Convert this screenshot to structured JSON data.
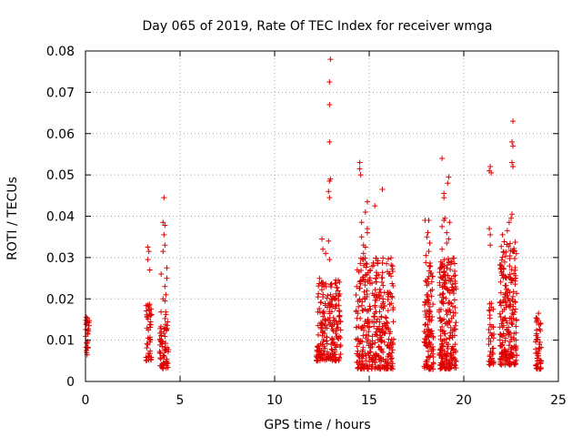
{
  "chart_data": {
    "type": "scatter",
    "title": "Day 065 of 2019, Rate Of TEC Index for receiver wmga",
    "xlabel": "GPS time / hours",
    "ylabel": "ROTI / TECUs",
    "xlim": [
      0,
      25
    ],
    "ylim": [
      0,
      0.08
    ],
    "x_ticks": [
      0,
      5,
      10,
      15,
      20,
      25
    ],
    "x_tick_labels": [
      "0",
      "5",
      "10",
      "15",
      "20",
      "25"
    ],
    "y_ticks": [
      0,
      0.01,
      0.02,
      0.03,
      0.04,
      0.05,
      0.06,
      0.07,
      0.08
    ],
    "y_tick_labels": [
      "0",
      "0.01",
      "0.02",
      "0.03",
      "0.04",
      "0.05",
      "0.06",
      "0.07",
      "0.08"
    ],
    "grid": true,
    "marker": "+",
    "marker_color": "#e00000",
    "clusters": [
      {
        "x_min": 0.0,
        "x_max": 0.2,
        "count": 25,
        "y_min": 0.006,
        "y_max": 0.016,
        "outliers": [
          [
            0.05,
            0.0155
          ],
          [
            0.1,
            0.0145
          ]
        ]
      },
      {
        "x_min": 3.2,
        "x_max": 3.5,
        "count": 45,
        "y_min": 0.005,
        "y_max": 0.019,
        "outliers": [
          [
            3.3,
            0.0325
          ],
          [
            3.35,
            0.0315
          ],
          [
            3.3,
            0.0295
          ],
          [
            3.4,
            0.027
          ]
        ]
      },
      {
        "x_min": 3.9,
        "x_max": 4.4,
        "count": 70,
        "y_min": 0.003,
        "y_max": 0.017,
        "outliers": [
          [
            4.15,
            0.0445
          ],
          [
            4.1,
            0.0385
          ],
          [
            4.2,
            0.0378
          ],
          [
            4.15,
            0.0355
          ],
          [
            4.2,
            0.033
          ],
          [
            4.1,
            0.0315
          ],
          [
            4.3,
            0.0275
          ],
          [
            4.0,
            0.026
          ],
          [
            4.3,
            0.025
          ],
          [
            4.2,
            0.023
          ],
          [
            4.25,
            0.021
          ],
          [
            4.1,
            0.02
          ],
          [
            4.2,
            0.0195
          ]
        ]
      },
      {
        "x_min": 12.2,
        "x_max": 13.5,
        "count": 210,
        "y_min": 0.005,
        "y_max": 0.025,
        "outliers": [
          [
            12.95,
            0.078
          ],
          [
            12.9,
            0.0725
          ],
          [
            12.9,
            0.067
          ],
          [
            12.9,
            0.058
          ],
          [
            12.95,
            0.049
          ],
          [
            12.9,
            0.0485
          ],
          [
            12.85,
            0.046
          ],
          [
            12.9,
            0.0445
          ],
          [
            12.5,
            0.0345
          ],
          [
            12.85,
            0.034
          ],
          [
            12.55,
            0.032
          ],
          [
            12.7,
            0.031
          ],
          [
            12.9,
            0.0295
          ]
        ]
      },
      {
        "x_min": 14.3,
        "x_max": 16.3,
        "count": 360,
        "y_min": 0.003,
        "y_max": 0.03,
        "outliers": [
          [
            14.5,
            0.053
          ],
          [
            14.5,
            0.0515
          ],
          [
            14.55,
            0.05
          ],
          [
            15.7,
            0.0465
          ],
          [
            14.9,
            0.0435
          ],
          [
            15.3,
            0.0425
          ],
          [
            14.8,
            0.041
          ],
          [
            14.6,
            0.0385
          ],
          [
            14.9,
            0.037
          ],
          [
            14.9,
            0.036
          ],
          [
            14.6,
            0.035
          ],
          [
            14.7,
            0.033
          ],
          [
            14.8,
            0.0325
          ],
          [
            14.7,
            0.031
          ]
        ]
      },
      {
        "x_min": 17.9,
        "x_max": 18.4,
        "count": 120,
        "y_min": 0.003,
        "y_max": 0.029,
        "outliers": [
          [
            17.95,
            0.039
          ],
          [
            18.15,
            0.039
          ],
          [
            18.1,
            0.036
          ],
          [
            18.05,
            0.035
          ],
          [
            18.2,
            0.0335
          ],
          [
            18.15,
            0.0315
          ],
          [
            18.0,
            0.0305
          ]
        ]
      },
      {
        "x_min": 18.7,
        "x_max": 19.6,
        "count": 230,
        "y_min": 0.003,
        "y_max": 0.03,
        "outliers": [
          [
            18.85,
            0.054
          ],
          [
            19.2,
            0.0495
          ],
          [
            19.15,
            0.048
          ],
          [
            18.95,
            0.0455
          ],
          [
            18.95,
            0.0445
          ],
          [
            19.0,
            0.0395
          ],
          [
            18.95,
            0.039
          ],
          [
            19.25,
            0.0385
          ],
          [
            18.85,
            0.0375
          ],
          [
            19.1,
            0.036
          ],
          [
            19.2,
            0.0345
          ],
          [
            19.1,
            0.0335
          ],
          [
            18.85,
            0.032
          ]
        ]
      },
      {
        "x_min": 21.3,
        "x_max": 21.6,
        "count": 40,
        "y_min": 0.004,
        "y_max": 0.019,
        "outliers": [
          [
            21.4,
            0.052
          ],
          [
            21.35,
            0.051
          ],
          [
            21.45,
            0.0505
          ],
          [
            21.35,
            0.037
          ],
          [
            21.4,
            0.0355
          ],
          [
            21.4,
            0.033
          ]
        ]
      },
      {
        "x_min": 21.9,
        "x_max": 22.8,
        "count": 230,
        "y_min": 0.004,
        "y_max": 0.034,
        "outliers": [
          [
            22.6,
            0.063
          ],
          [
            22.55,
            0.058
          ],
          [
            22.6,
            0.057
          ],
          [
            22.55,
            0.053
          ],
          [
            22.6,
            0.052
          ],
          [
            22.55,
            0.0405
          ],
          [
            22.5,
            0.0395
          ],
          [
            22.4,
            0.0385
          ],
          [
            22.3,
            0.0365
          ],
          [
            22.05,
            0.0355
          ]
        ]
      },
      {
        "x_min": 23.8,
        "x_max": 24.1,
        "count": 50,
        "y_min": 0.003,
        "y_max": 0.016,
        "outliers": [
          [
            23.95,
            0.0165
          ],
          [
            23.9,
            0.015
          ]
        ]
      }
    ]
  }
}
